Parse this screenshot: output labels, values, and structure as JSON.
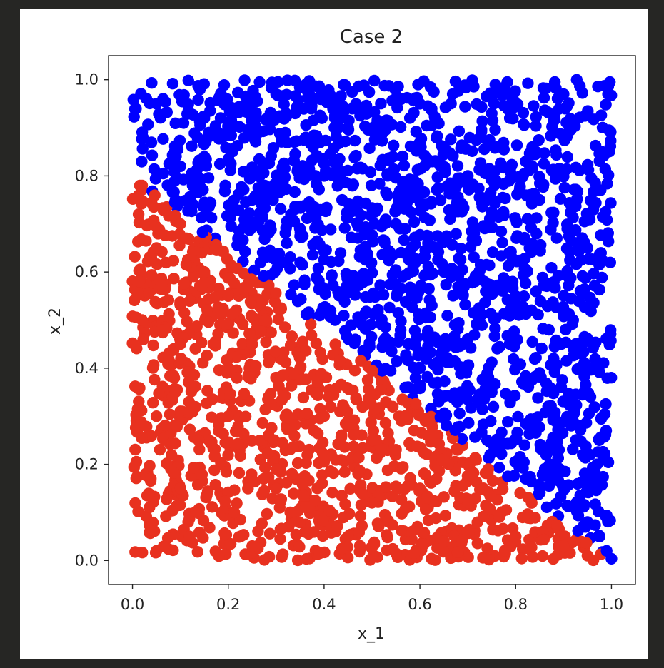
{
  "chart_data": {
    "type": "scatter",
    "title": "Case 2",
    "xlabel": "x_1",
    "ylabel": "x_2",
    "xlim": [
      -0.05,
      1.05
    ],
    "ylim": [
      -0.05,
      1.05
    ],
    "xticks": [
      0.0,
      0.2,
      0.4,
      0.6,
      0.8,
      1.0
    ],
    "yticks": [
      0.0,
      0.2,
      0.4,
      0.6,
      0.8,
      1.0
    ],
    "tick_labels_x": [
      "0.0",
      "0.2",
      "0.4",
      "0.6",
      "0.8",
      "1.0"
    ],
    "tick_labels_y": [
      "0.0",
      "0.2",
      "0.4",
      "0.6",
      "0.8",
      "1.0"
    ],
    "grid": false,
    "legend": "none",
    "decision_boundary": "x_2 = 0.8 * (1 - x_1)",
    "series": [
      {
        "color": "#0000ff",
        "rule": "x_2 > 0.8 * (1 - x_1)",
        "points": [
          [
            0.05,
            0.95
          ],
          [
            0.15,
            0.92
          ],
          [
            0.3,
            0.97
          ],
          [
            0.45,
            0.9
          ],
          [
            0.6,
            0.95
          ],
          [
            0.75,
            0.93
          ],
          [
            0.9,
            0.97
          ],
          [
            0.98,
            0.85
          ],
          [
            0.1,
            0.82
          ],
          [
            0.25,
            0.75
          ],
          [
            0.4,
            0.8
          ],
          [
            0.55,
            0.7
          ],
          [
            0.7,
            0.8
          ],
          [
            0.85,
            0.75
          ],
          [
            0.95,
            0.65
          ],
          [
            0.35,
            0.62
          ],
          [
            0.5,
            0.55
          ],
          [
            0.65,
            0.6
          ],
          [
            0.8,
            0.55
          ],
          [
            0.92,
            0.5
          ],
          [
            0.6,
            0.4
          ],
          [
            0.75,
            0.35
          ],
          [
            0.88,
            0.3
          ],
          [
            0.97,
            0.2
          ],
          [
            0.85,
            0.15
          ],
          [
            0.95,
            0.08
          ],
          [
            0.99,
            0.02
          ]
        ]
      },
      {
        "color": "#e8311f",
        "rule": "x_2 < 0.8 * (1 - x_1)",
        "points": [
          [
            0.02,
            0.78
          ],
          [
            0.05,
            0.65
          ],
          [
            0.1,
            0.7
          ],
          [
            0.15,
            0.6
          ],
          [
            0.2,
            0.55
          ],
          [
            0.02,
            0.5
          ],
          [
            0.1,
            0.45
          ],
          [
            0.25,
            0.45
          ],
          [
            0.35,
            0.4
          ],
          [
            0.05,
            0.3
          ],
          [
            0.2,
            0.3
          ],
          [
            0.4,
            0.3
          ],
          [
            0.5,
            0.25
          ],
          [
            0.1,
            0.15
          ],
          [
            0.3,
            0.15
          ],
          [
            0.5,
            0.12
          ],
          [
            0.6,
            0.15
          ],
          [
            0.7,
            0.12
          ],
          [
            0.05,
            0.02
          ],
          [
            0.25,
            0.03
          ],
          [
            0.45,
            0.05
          ],
          [
            0.65,
            0.04
          ],
          [
            0.8,
            0.05
          ],
          [
            0.9,
            0.03
          ],
          [
            0.95,
            0.01
          ]
        ]
      }
    ]
  }
}
